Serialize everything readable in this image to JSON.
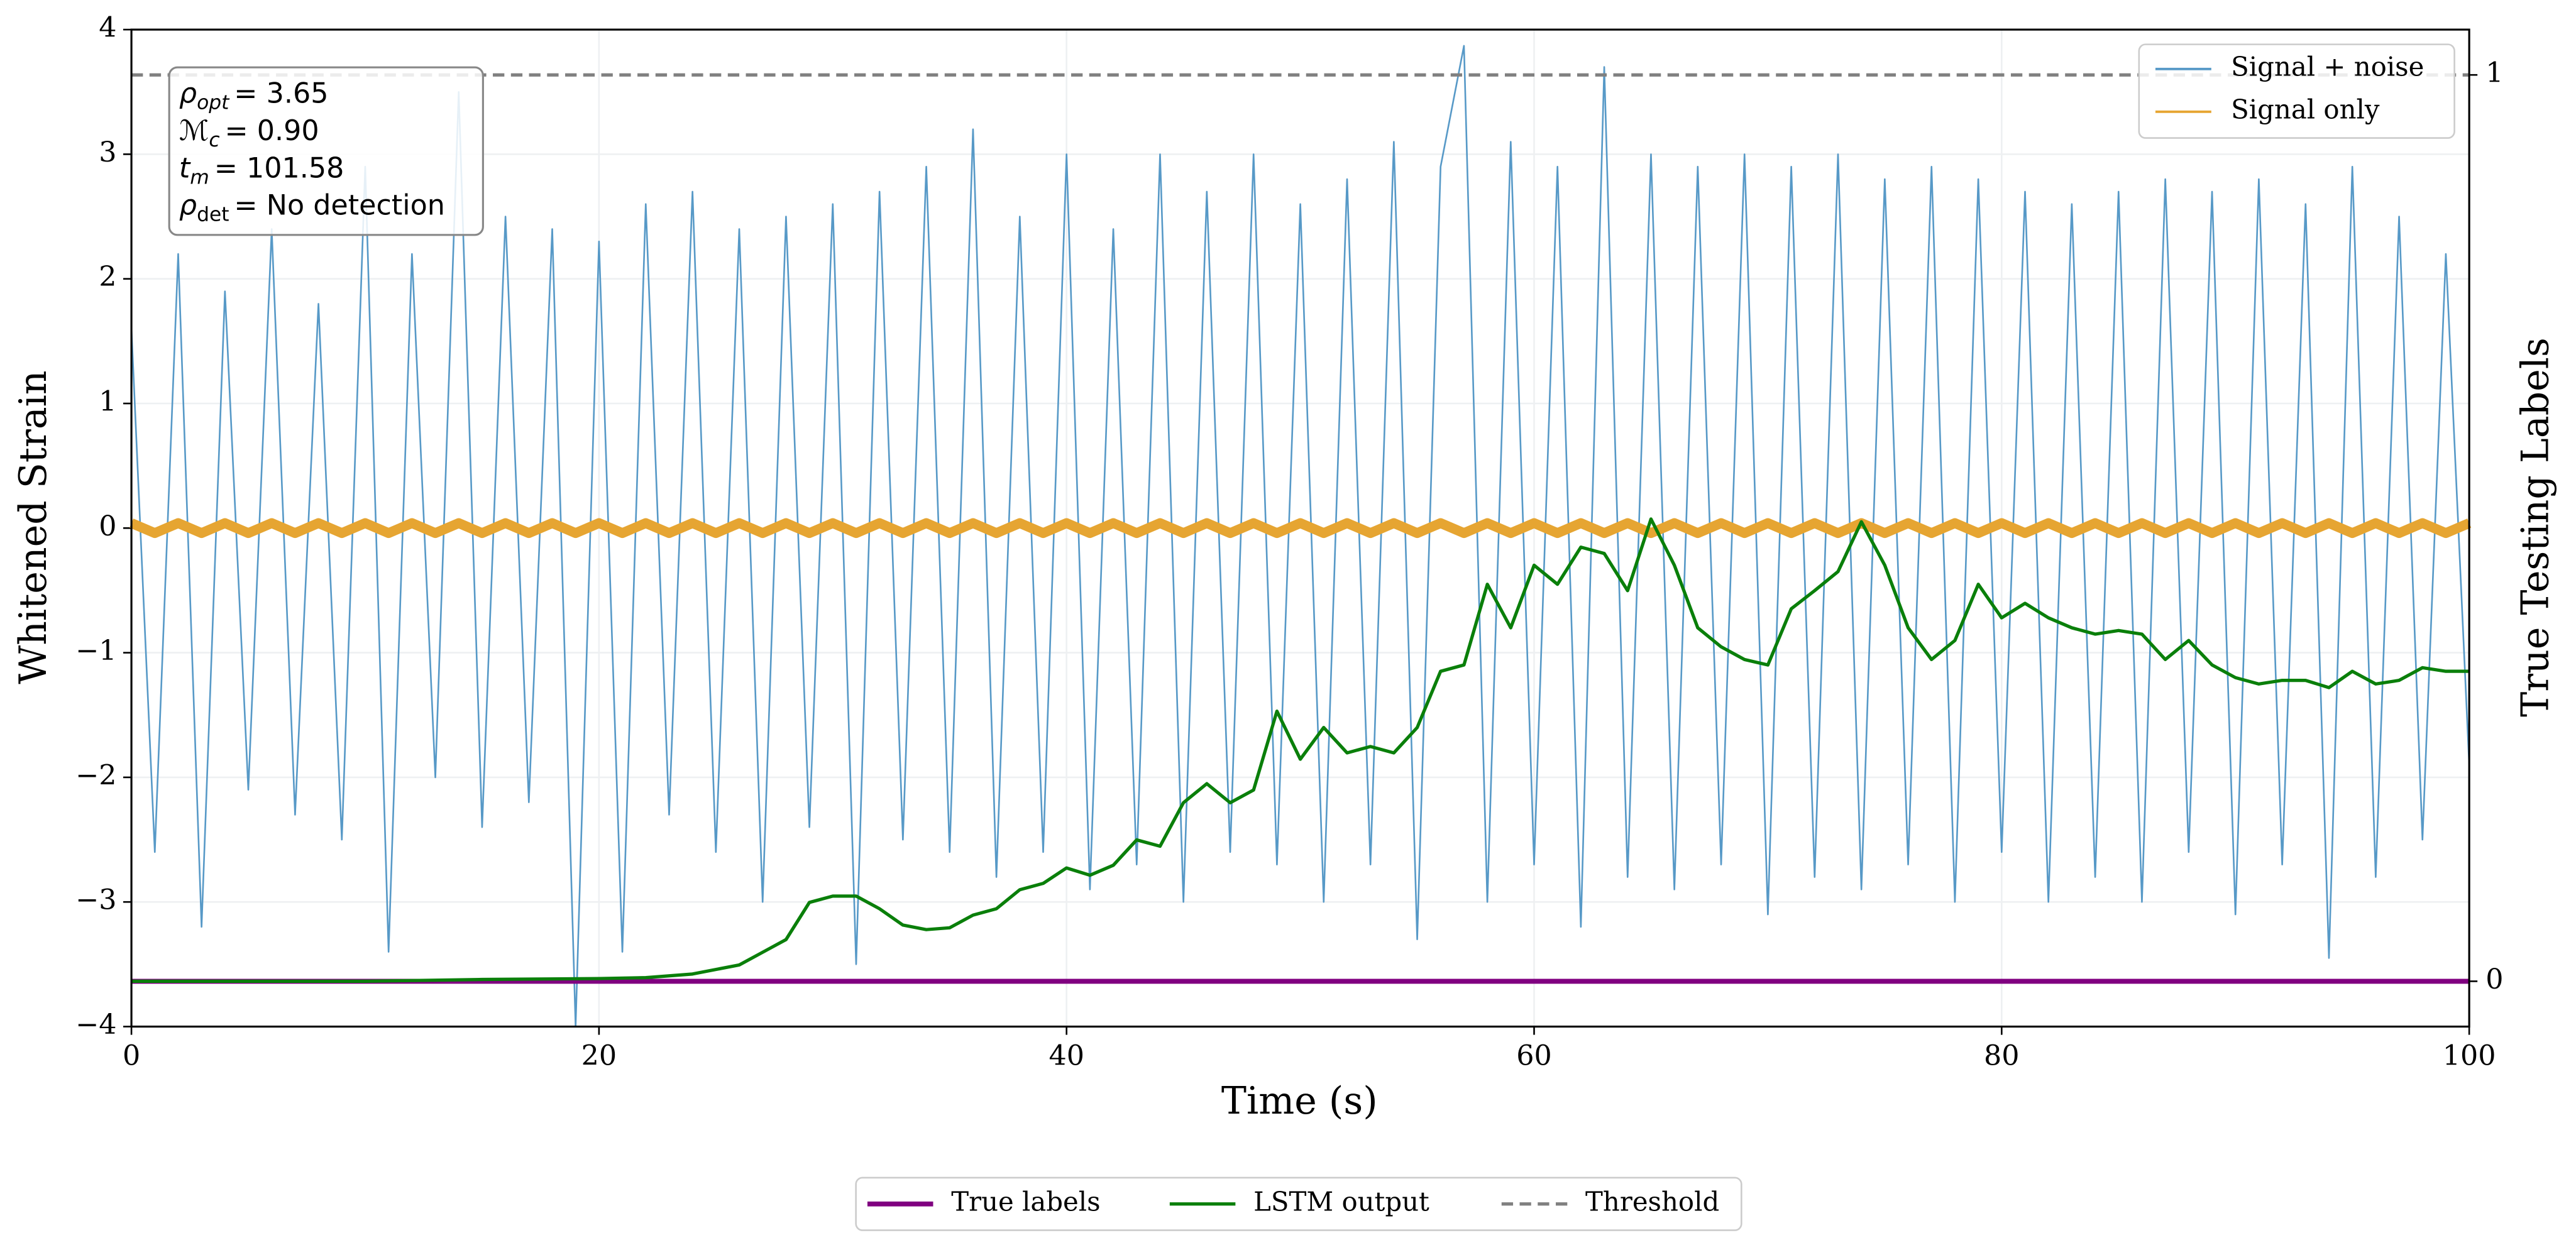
{
  "chart_data": {
    "type": "line",
    "xlabel": "Time (s)",
    "ylabel": "Whitened Strain",
    "y2label": "True Testing Labels",
    "xlim": [
      0,
      100
    ],
    "xticks": [
      0,
      20,
      40,
      60,
      80,
      100
    ],
    "ylim": [
      -4,
      4
    ],
    "yticks": [
      {
        "value": -4,
        "label": "−4"
      },
      {
        "value": -3,
        "label": "−3"
      },
      {
        "value": -2,
        "label": "−2"
      },
      {
        "value": -1,
        "label": "−1"
      },
      0,
      1,
      2,
      3,
      4
    ],
    "y2lim": [
      -0.05,
      1.05
    ],
    "y2ticks": [
      0,
      1
    ],
    "grid": true,
    "legend": "upper right",
    "legend2": "lower center",
    "annotation": [
      {
        "symbol": "ρ",
        "sub": "opt",
        "text": "= 3.65"
      },
      {
        "symbol": "ℳ",
        "sub": "c",
        "text": "= 0.90"
      },
      {
        "symbol": "t",
        "sub": "m",
        "text": "= 101.58"
      },
      {
        "symbol": "ρ",
        "sub": "det",
        "text": "= No detection"
      }
    ],
    "series": [
      {
        "name": "Signal + noise",
        "color": "#5799c7",
        "width": 1,
        "x": [
          0,
          1,
          2,
          3,
          4,
          5,
          6,
          7,
          8,
          9,
          10,
          11,
          12,
          13,
          14,
          15,
          16,
          17,
          18,
          19,
          20,
          21,
          22,
          23,
          24,
          25,
          26,
          27,
          28,
          29,
          30,
          31,
          32,
          33,
          34,
          35,
          36,
          37,
          38,
          39,
          40,
          41,
          42,
          43,
          44,
          45,
          46,
          47,
          48,
          49,
          50,
          51,
          52,
          53,
          54,
          55,
          56,
          57,
          58,
          59,
          60,
          61,
          62,
          63,
          64,
          65,
          66,
          67,
          68,
          69,
          70,
          71,
          72,
          73,
          74,
          75,
          76,
          77,
          78,
          79,
          80,
          81,
          82,
          83,
          84,
          85,
          86,
          87,
          88,
          89,
          90,
          91,
          92,
          93,
          94,
          95,
          96,
          97,
          98,
          99,
          100
        ],
        "values": [
          1.6,
          -2.6,
          2.2,
          -3.2,
          1.9,
          -2.1,
          2.4,
          -2.3,
          1.8,
          -2.5,
          2.9,
          -3.4,
          2.2,
          -2.0,
          3.5,
          -2.4,
          2.5,
          -2.2,
          2.4,
          -4.0,
          2.3,
          -3.4,
          2.6,
          -2.3,
          2.7,
          -2.6,
          2.4,
          -3.0,
          2.5,
          -2.4,
          2.6,
          -3.5,
          2.7,
          -2.5,
          2.9,
          -2.6,
          3.2,
          -2.8,
          2.5,
          -2.6,
          3.0,
          -2.9,
          2.4,
          -2.7,
          3.0,
          -3.0,
          2.7,
          -2.6,
          3.0,
          -2.7,
          2.6,
          -3.0,
          2.8,
          -2.7,
          3.1,
          -3.3,
          2.9,
          3.87,
          -3.0,
          3.1,
          -2.7,
          2.9,
          -3.2,
          3.7,
          -2.8,
          3.0,
          -2.9,
          2.9,
          -2.7,
          3.0,
          -3.1,
          2.9,
          -2.8,
          3.0,
          -2.9,
          2.8,
          -2.7,
          2.9,
          -3.0,
          2.8,
          -2.6,
          2.7,
          -3.0,
          2.6,
          -2.8,
          2.7,
          -3.0,
          2.8,
          -2.6,
          2.7,
          -3.1,
          2.8,
          -2.7,
          2.6,
          -3.45,
          2.9,
          -2.8,
          2.5,
          -2.5,
          2.2,
          -1.9
        ]
      },
      {
        "name": "Signal only",
        "color": "#e6a532",
        "width": 6,
        "x": [
          0,
          1,
          2,
          3,
          4,
          5,
          6,
          7,
          8,
          9,
          10,
          11,
          12,
          13,
          14,
          15,
          16,
          17,
          18,
          19,
          20,
          21,
          22,
          23,
          24,
          25,
          26,
          27,
          28,
          29,
          30,
          31,
          32,
          33,
          34,
          35,
          36,
          37,
          38,
          39,
          40,
          41,
          42,
          43,
          44,
          45,
          46,
          47,
          48,
          49,
          50,
          51,
          52,
          53,
          54,
          55,
          56,
          57,
          58,
          59,
          60,
          61,
          62,
          63,
          64,
          65,
          66,
          67,
          68,
          69,
          70,
          71,
          72,
          73,
          74,
          75,
          76,
          77,
          78,
          79,
          80,
          81,
          82,
          83,
          84,
          85,
          86,
          87,
          88,
          89,
          90,
          91,
          92,
          93,
          94,
          95,
          96,
          97,
          98,
          99,
          100
        ],
        "values": [
          0.04,
          -0.04,
          0.04,
          -0.04,
          0.04,
          -0.04,
          0.04,
          -0.04,
          0.04,
          -0.04,
          0.04,
          -0.04,
          0.04,
          -0.04,
          0.04,
          -0.04,
          0.04,
          -0.04,
          0.04,
          -0.04,
          0.04,
          -0.04,
          0.04,
          -0.04,
          0.04,
          -0.04,
          0.04,
          -0.04,
          0.04,
          -0.04,
          0.04,
          -0.04,
          0.04,
          -0.04,
          0.04,
          -0.04,
          0.04,
          -0.04,
          0.04,
          -0.04,
          0.04,
          -0.04,
          0.04,
          -0.04,
          0.04,
          -0.04,
          0.04,
          -0.04,
          0.04,
          -0.04,
          0.04,
          -0.04,
          0.04,
          -0.04,
          0.04,
          -0.04,
          0.04,
          -0.04,
          0.04,
          -0.04,
          0.04,
          -0.04,
          0.04,
          -0.04,
          0.04,
          -0.04,
          0.04,
          -0.04,
          0.04,
          -0.04,
          0.04,
          -0.04,
          0.04,
          -0.04,
          0.04,
          -0.04,
          0.04,
          -0.04,
          0.04,
          -0.04,
          0.04,
          -0.04,
          0.04,
          -0.04,
          0.04,
          -0.04,
          0.04,
          -0.04,
          0.04,
          -0.04,
          0.04,
          -0.04,
          0.04,
          -0.04,
          0.04,
          -0.04,
          0.04,
          -0.04,
          0.04,
          -0.04,
          0.04
        ]
      },
      {
        "name": "True labels",
        "color": "#800080",
        "width": 3,
        "axis": "y2",
        "x": [
          0,
          100
        ],
        "values": [
          0,
          0
        ]
      },
      {
        "name": "LSTM output",
        "color": "#0a7f0a",
        "width": 2,
        "axis": "y2",
        "x": [
          0,
          5,
          10,
          15,
          20,
          22,
          24,
          26,
          27,
          28,
          29,
          30,
          31,
          32,
          33,
          34,
          35,
          36,
          37,
          38,
          39,
          40,
          41,
          42,
          43,
          44,
          45,
          46,
          47,
          48,
          49,
          50,
          51,
          52,
          53,
          54,
          55,
          56,
          57,
          58,
          59,
          60,
          61,
          62,
          63,
          64,
          65,
          66,
          67,
          68,
          69,
          70,
          71,
          72,
          73,
          74,
          75,
          76,
          77,
          78,
          79,
          80,
          81,
          82,
          83,
          84,
          85,
          86,
          87,
          88,
          89,
          90,
          91,
          92,
          93,
          94,
          95,
          96,
          97,
          98,
          99,
          100
        ],
        "values": [
          0,
          0,
          0,
          0.002,
          0.003,
          0.004,
          0.008,
          0.018,
          0.032,
          0.046,
          0.087,
          0.094,
          0.094,
          0.08,
          0.062,
          0.057,
          0.059,
          0.073,
          0.08,
          0.101,
          0.108,
          0.125,
          0.117,
          0.128,
          0.156,
          0.149,
          0.197,
          0.218,
          0.197,
          0.211,
          0.298,
          0.245,
          0.28,
          0.252,
          0.259,
          0.252,
          0.28,
          0.342,
          0.349,
          0.438,
          0.39,
          0.459,
          0.438,
          0.479,
          0.472,
          0.431,
          0.51,
          0.459,
          0.39,
          0.369,
          0.355,
          0.349,
          0.411,
          0.431,
          0.452,
          0.507,
          0.459,
          0.39,
          0.355,
          0.376,
          0.438,
          0.401,
          0.417,
          0.401,
          0.39,
          0.383,
          0.387,
          0.383,
          0.355,
          0.376,
          0.349,
          0.335,
          0.328,
          0.332,
          0.332,
          0.324,
          0.342,
          0.328,
          0.332,
          0.346,
          0.342,
          0.342
        ]
      },
      {
        "name": "Threshold",
        "color": "#808080",
        "width": 2,
        "dash": true,
        "axis": "y2",
        "x": [
          0,
          100
        ],
        "values": [
          1,
          1
        ]
      }
    ]
  }
}
